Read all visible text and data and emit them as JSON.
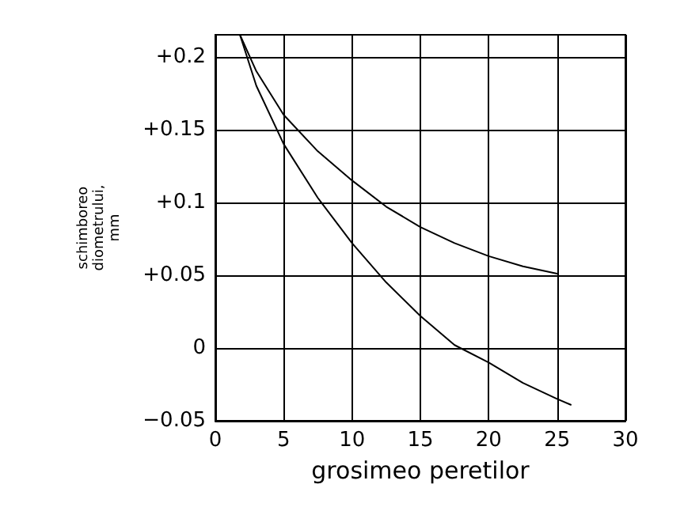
{
  "chart_data": {
    "type": "line",
    "xlabel": "grosimeo peretilor",
    "ylabel": "schimboreo\ndiometrului,\nmm",
    "series": [
      {
        "color": "#000000",
        "x": [
          1.8,
          3,
          5,
          7.5,
          10,
          12.5,
          15,
          17.5,
          20,
          22.5,
          25
        ],
        "values": [
          0.215,
          0.19,
          0.16,
          0.135,
          0.115,
          0.097,
          0.083,
          0.072,
          0.063,
          0.056,
          0.051
        ]
      },
      {
        "color": "#000000",
        "x": [
          1.8,
          3,
          5,
          7.5,
          10,
          12.5,
          15,
          17.5,
          20,
          22.5,
          25,
          26
        ],
        "values": [
          0.215,
          0.18,
          0.14,
          0.103,
          0.072,
          0.045,
          0.022,
          0.002,
          -0.01,
          -0.024,
          -0.035,
          -0.039
        ]
      }
    ],
    "xlim": [
      0,
      30
    ],
    "xticks": [
      0,
      5,
      10,
      15,
      20,
      25,
      30
    ],
    "ylim": [
      -0.05,
      0.215
    ],
    "yticks": [
      {
        "value": -0.05,
        "label": "−0.05"
      },
      {
        "value": 0,
        "label": "0"
      },
      {
        "value": 0.05,
        "label": "+0.05"
      },
      {
        "value": 0.1,
        "label": "+0.1"
      },
      {
        "value": 0.15,
        "label": "+0.15"
      },
      {
        "value": 0.2,
        "label": "+0.2"
      }
    ],
    "grid": true,
    "marker": "none",
    "line_style": "solid"
  }
}
